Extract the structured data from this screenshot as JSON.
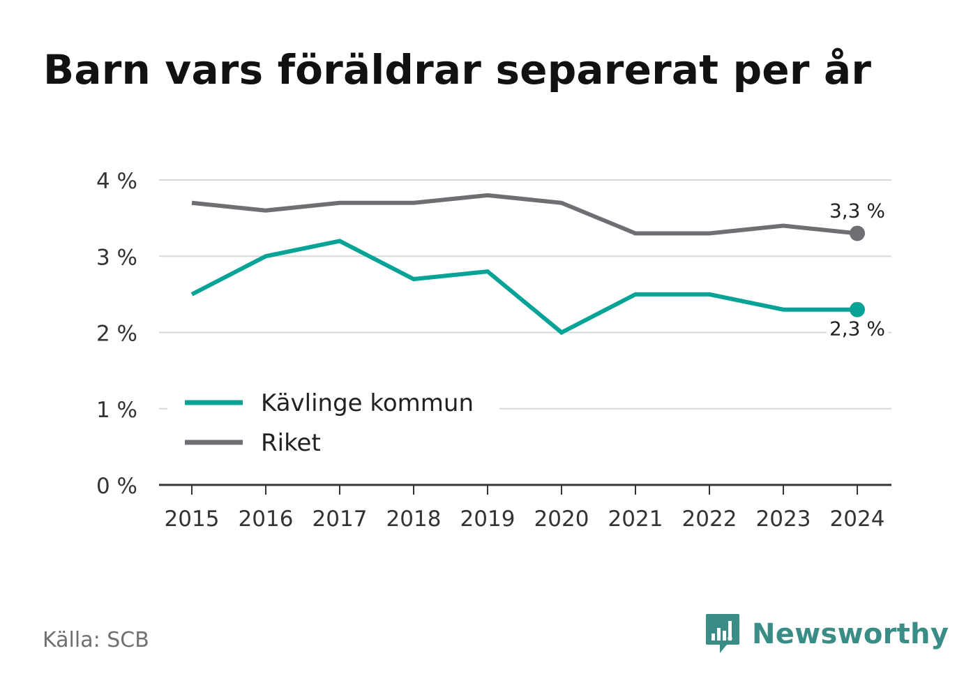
{
  "title": "Barn vars föräldrar separerat per år",
  "source": "Källa: SCB",
  "brand": {
    "name": "Newsworthy",
    "icon": "newsworthy-logo-icon"
  },
  "colors": {
    "kavlinge": "#06a396",
    "riket": "#6f6e73",
    "grid": "#d9d9d9",
    "axis": "#333333",
    "text": "#333333"
  },
  "chart_data": {
    "type": "line",
    "x": [
      "2015",
      "2016",
      "2017",
      "2018",
      "2019",
      "2020",
      "2021",
      "2022",
      "2023",
      "2024"
    ],
    "ylim": [
      0,
      4
    ],
    "yticks": [
      "0 %",
      "1 %",
      "2 %",
      "3 %",
      "4 %"
    ],
    "grid": true,
    "legend": "bottom-left",
    "series": [
      {
        "name": "Kävlinge kommun",
        "values": [
          2.5,
          3.0,
          3.2,
          2.7,
          2.8,
          2.0,
          2.5,
          2.5,
          2.3,
          2.3
        ],
        "end_label": "2,3 %"
      },
      {
        "name": "Riket",
        "values": [
          3.7,
          3.6,
          3.7,
          3.7,
          3.8,
          3.7,
          3.3,
          3.3,
          3.4,
          3.3
        ],
        "end_label": "3,3 %"
      }
    ]
  }
}
